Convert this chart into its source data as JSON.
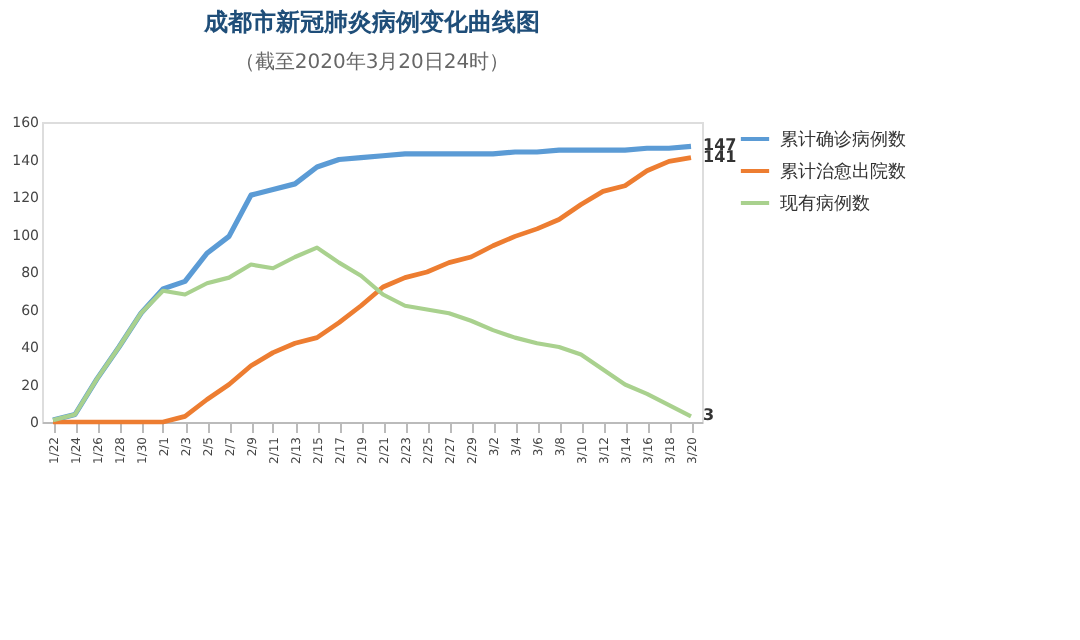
{
  "chart_data": {
    "type": "line",
    "title": "成都市新冠肺炎病例变化曲线图",
    "subtitle": "（截至2020年3月20日24时）",
    "x": [
      "2020-01-22",
      "2020-01-24",
      "2020-01-26",
      "2020-01-28",
      "2020-01-30",
      "2020-02-01",
      "2020-02-03",
      "2020-02-05",
      "2020-02-07",
      "2020-02-09",
      "2020-02-11",
      "2020-02-13",
      "2020-02-15",
      "2020-02-17",
      "2020-02-19",
      "2020-02-21",
      "2020-02-23",
      "2020-02-25",
      "2020-02-27",
      "2020-02-29",
      "2020-03-02",
      "2020-03-04",
      "2020-03-06",
      "2020-03-08",
      "2020-03-10",
      "2020-03-12",
      "2020-03-14",
      "2020-03-16",
      "2020-03-18",
      "2020-03-20"
    ],
    "series": [
      {
        "name": "累计确诊病例数",
        "color": "#5b9bd5",
        "values": [
          1,
          4,
          23,
          40,
          58,
          71,
          75,
          90,
          99,
          121,
          124,
          127,
          136,
          140,
          141,
          142,
          143,
          143,
          143,
          143,
          143,
          144,
          144,
          145,
          145,
          145,
          145,
          146,
          146,
          147
        ]
      },
      {
        "name": "累计治愈出院数",
        "color": "#ed7d31",
        "values": [
          0,
          0,
          0,
          0,
          0,
          0,
          3,
          12,
          20,
          30,
          37,
          42,
          45,
          53,
          62,
          72,
          77,
          80,
          85,
          88,
          94,
          99,
          103,
          108,
          116,
          123,
          126,
          134,
          139,
          141
        ]
      },
      {
        "name": "现有病例数",
        "color": "#a9d18e",
        "values": [
          1,
          4,
          23,
          40,
          58,
          70,
          68,
          74,
          77,
          84,
          82,
          88,
          93,
          85,
          78,
          68,
          62,
          60,
          58,
          54,
          49,
          45,
          42,
          40,
          36,
          28,
          20,
          15,
          9,
          3
        ]
      }
    ],
    "xlim": [
      "2020-01-21",
      "2020-03-21"
    ],
    "xticks": [
      {
        "value": "2020-01-22",
        "label": "1/22"
      },
      {
        "value": "2020-01-24",
        "label": "1/24"
      },
      {
        "value": "2020-01-26",
        "label": "1/26"
      },
      {
        "value": "2020-01-28",
        "label": "1/28"
      },
      {
        "value": "2020-01-30",
        "label": "1/30"
      },
      {
        "value": "2020-02-01",
        "label": "2/1"
      },
      {
        "value": "2020-02-03",
        "label": "2/3"
      },
      {
        "value": "2020-02-05",
        "label": "2/5"
      },
      {
        "value": "2020-02-07",
        "label": "2/7"
      },
      {
        "value": "2020-02-09",
        "label": "2/9"
      },
      {
        "value": "2020-02-11",
        "label": "2/11"
      },
      {
        "value": "2020-02-13",
        "label": "2/13"
      },
      {
        "value": "2020-02-15",
        "label": "2/15"
      },
      {
        "value": "2020-02-17",
        "label": "2/17"
      },
      {
        "value": "2020-02-19",
        "label": "2/19"
      },
      {
        "value": "2020-02-21",
        "label": "2/21"
      },
      {
        "value": "2020-02-23",
        "label": "2/23"
      },
      {
        "value": "2020-02-25",
        "label": "2/25"
      },
      {
        "value": "2020-02-27",
        "label": "2/27"
      },
      {
        "value": "2020-02-29",
        "label": "2/29"
      },
      {
        "value": "2020-03-02",
        "label": "3/2"
      },
      {
        "value": "2020-03-04",
        "label": "3/4"
      },
      {
        "value": "2020-03-06",
        "label": "3/6"
      },
      {
        "value": "2020-03-08",
        "label": "3/8"
      },
      {
        "value": "2020-03-10",
        "label": "3/10"
      },
      {
        "value": "2020-03-12",
        "label": "3/12"
      },
      {
        "value": "2020-03-14",
        "label": "3/14"
      },
      {
        "value": "2020-03-16",
        "label": "3/16"
      },
      {
        "value": "2020-03-18",
        "label": "3/18"
      },
      {
        "value": "2020-03-20",
        "label": "3/20"
      }
    ],
    "ylim": [
      0,
      160
    ],
    "yticks": [
      0,
      20,
      40,
      60,
      80,
      100,
      120,
      140,
      160
    ],
    "annotations": [
      {
        "text": "147",
        "x": "2020-03-20",
        "y": 147
      },
      {
        "text": "141",
        "x": "2020-03-20",
        "y": 141
      },
      {
        "text": "3",
        "x": "2020-03-20",
        "y": 3
      }
    ],
    "grid": false,
    "legend": "right",
    "marker": "none",
    "line_style": "solid"
  }
}
